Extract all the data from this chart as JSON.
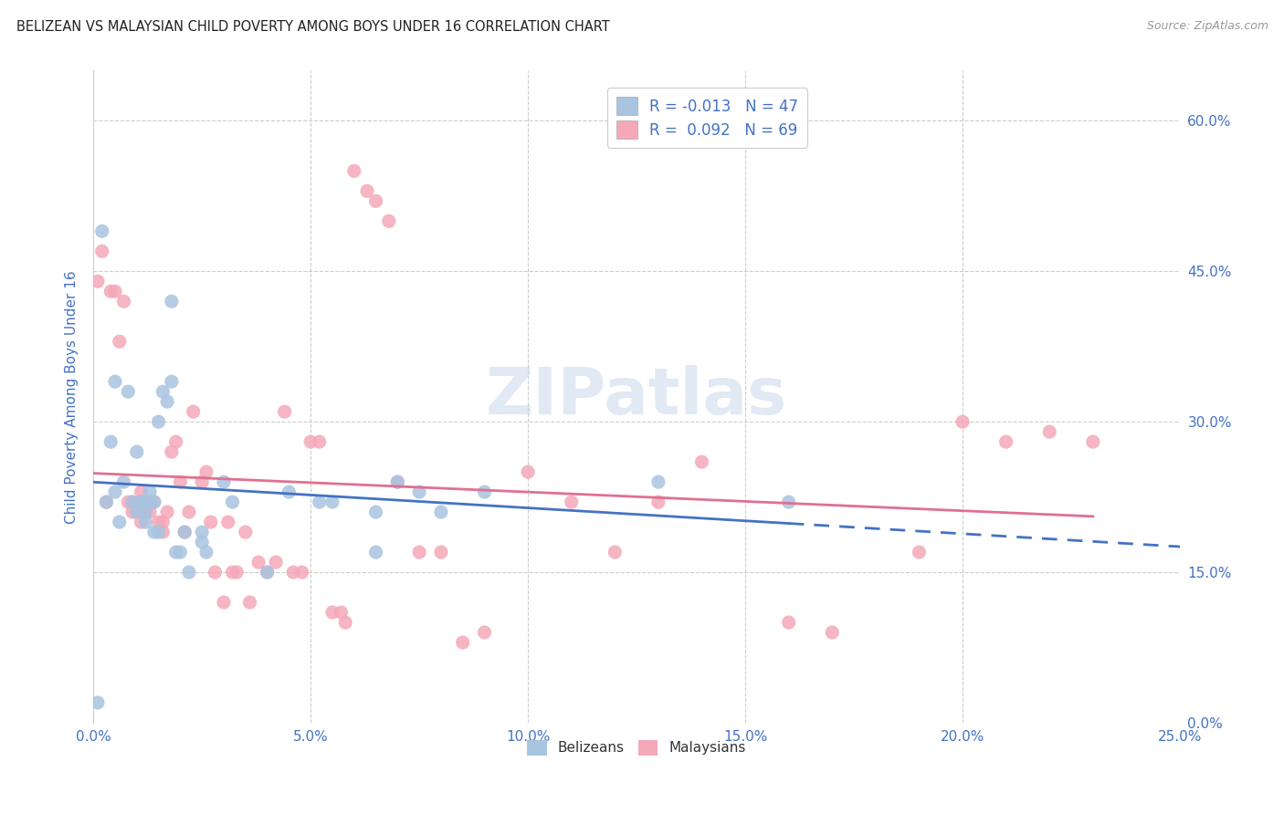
{
  "title": "BELIZEAN VS MALAYSIAN CHILD POVERTY AMONG BOYS UNDER 16 CORRELATION CHART",
  "source": "Source: ZipAtlas.com",
  "ylabel_label": "Child Poverty Among Boys Under 16",
  "legend_labels": [
    "Belizeans",
    "Malaysians"
  ],
  "belizean_color": "#a8c4e0",
  "malaysian_color": "#f4a8b8",
  "belizean_line_color": "#4472c4",
  "malaysian_line_color": "#e07090",
  "belizean_R": -0.013,
  "belizean_N": 47,
  "malaysian_R": 0.092,
  "malaysian_N": 69,
  "watermark_text": "ZIPatlas",
  "belizean_x": [
    0.001,
    0.002,
    0.003,
    0.004,
    0.005,
    0.005,
    0.006,
    0.007,
    0.008,
    0.009,
    0.01,
    0.01,
    0.011,
    0.011,
    0.012,
    0.012,
    0.013,
    0.013,
    0.014,
    0.014,
    0.015,
    0.015,
    0.016,
    0.017,
    0.018,
    0.018,
    0.019,
    0.02,
    0.021,
    0.022,
    0.025,
    0.025,
    0.026,
    0.03,
    0.032,
    0.04,
    0.045,
    0.052,
    0.055,
    0.065,
    0.065,
    0.07,
    0.075,
    0.08,
    0.09,
    0.13,
    0.16
  ],
  "belizean_y": [
    0.02,
    0.49,
    0.22,
    0.28,
    0.34,
    0.23,
    0.2,
    0.24,
    0.33,
    0.22,
    0.27,
    0.21,
    0.22,
    0.22,
    0.2,
    0.21,
    0.23,
    0.22,
    0.22,
    0.19,
    0.19,
    0.3,
    0.33,
    0.32,
    0.42,
    0.34,
    0.17,
    0.17,
    0.19,
    0.15,
    0.19,
    0.18,
    0.17,
    0.24,
    0.22,
    0.15,
    0.23,
    0.22,
    0.22,
    0.17,
    0.21,
    0.24,
    0.23,
    0.21,
    0.23,
    0.24,
    0.22
  ],
  "malaysian_x": [
    0.001,
    0.002,
    0.003,
    0.004,
    0.005,
    0.006,
    0.007,
    0.008,
    0.009,
    0.009,
    0.01,
    0.011,
    0.011,
    0.012,
    0.012,
    0.013,
    0.014,
    0.015,
    0.016,
    0.016,
    0.017,
    0.018,
    0.019,
    0.02,
    0.021,
    0.022,
    0.023,
    0.025,
    0.026,
    0.027,
    0.028,
    0.03,
    0.031,
    0.032,
    0.033,
    0.035,
    0.036,
    0.038,
    0.04,
    0.042,
    0.044,
    0.046,
    0.048,
    0.05,
    0.052,
    0.055,
    0.057,
    0.058,
    0.06,
    0.063,
    0.065,
    0.068,
    0.07,
    0.075,
    0.08,
    0.085,
    0.09,
    0.1,
    0.11,
    0.12,
    0.13,
    0.14,
    0.16,
    0.17,
    0.19,
    0.2,
    0.21,
    0.22,
    0.23
  ],
  "malaysian_y": [
    0.44,
    0.47,
    0.22,
    0.43,
    0.43,
    0.38,
    0.42,
    0.22,
    0.21,
    0.22,
    0.21,
    0.23,
    0.2,
    0.22,
    0.21,
    0.21,
    0.22,
    0.2,
    0.19,
    0.2,
    0.21,
    0.27,
    0.28,
    0.24,
    0.19,
    0.21,
    0.31,
    0.24,
    0.25,
    0.2,
    0.15,
    0.12,
    0.2,
    0.15,
    0.15,
    0.19,
    0.12,
    0.16,
    0.15,
    0.16,
    0.31,
    0.15,
    0.15,
    0.28,
    0.28,
    0.11,
    0.11,
    0.1,
    0.55,
    0.53,
    0.52,
    0.5,
    0.24,
    0.17,
    0.17,
    0.08,
    0.09,
    0.25,
    0.22,
    0.17,
    0.22,
    0.26,
    0.1,
    0.09,
    0.17,
    0.3,
    0.28,
    0.29,
    0.28
  ],
  "xlim": [
    0.0,
    0.25
  ],
  "ylim": [
    0.0,
    0.65
  ],
  "bg_color": "#ffffff",
  "grid_color": "#cccccc",
  "title_color": "#222222",
  "axis_label_color": "#4472c4",
  "tick_label_color": "#4472c4",
  "legend_R_color": "#4472c4",
  "x_tick_vals": [
    0.0,
    0.05,
    0.1,
    0.15,
    0.2,
    0.25
  ],
  "x_tick_labels": [
    "0.0%",
    "5.0%",
    "10.0%",
    "15.0%",
    "20.0%",
    "25.0%"
  ],
  "y_tick_vals": [
    0.0,
    0.15,
    0.3,
    0.45,
    0.6
  ],
  "y_tick_labels": [
    "0.0%",
    "15.0%",
    "30.0%",
    "45.0%",
    "60.0%"
  ]
}
